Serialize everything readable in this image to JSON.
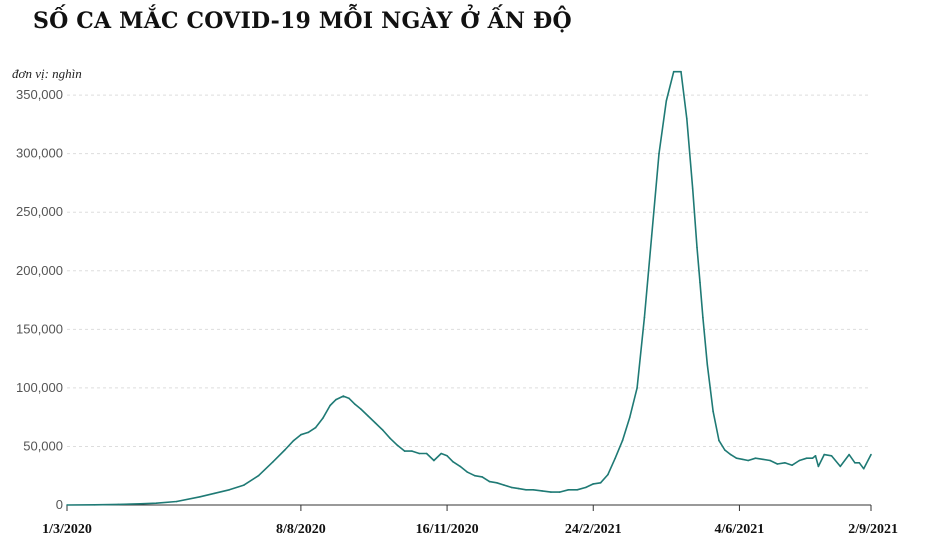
{
  "chart_data": {
    "type": "line",
    "title": "SỐ CA MẮC COVID-19 MỖI NGÀY Ở ẤN ĐỘ",
    "unit_label": "đơn vị: nghìn",
    "ylim": [
      0,
      380000
    ],
    "yticks": [
      0,
      50000,
      100000,
      150000,
      200000,
      250000,
      300000,
      350000
    ],
    "ytick_labels": [
      "0",
      "50,000",
      "100,000",
      "150,000",
      "200,000",
      "250,000",
      "300,000",
      "350,000"
    ],
    "xlim": [
      "2020-03-01",
      "2021-09-02"
    ],
    "xticks": [
      {
        "date": "2020-03-01",
        "label": "1/3/2020"
      },
      {
        "date": "2020-08-08",
        "label": "8/8/2020"
      },
      {
        "date": "2020-11-16",
        "label": "16/11/2020"
      },
      {
        "date": "2021-02-24",
        "label": "24/2/2021"
      },
      {
        "date": "2021-06-04",
        "label": "4/6/2021"
      },
      {
        "date": "2021-09-02",
        "label": "2/9/2021"
      }
    ],
    "grid": "horizontal dashed",
    "color": "#1f7a75",
    "series": [
      {
        "x": [
          "2020-03-01",
          "2020-03-20",
          "2020-04-05",
          "2020-04-20",
          "2020-05-01",
          "2020-05-15",
          "2020-05-31",
          "2020-06-10",
          "2020-06-20",
          "2020-06-30",
          "2020-07-10",
          "2020-07-20",
          "2020-07-28",
          "2020-08-03",
          "2020-08-08",
          "2020-08-13",
          "2020-08-18",
          "2020-08-23",
          "2020-08-28",
          "2020-09-01",
          "2020-09-06",
          "2020-09-10",
          "2020-09-14",
          "2020-09-18",
          "2020-09-23",
          "2020-09-28",
          "2020-10-03",
          "2020-10-08",
          "2020-10-13",
          "2020-10-18",
          "2020-10-23",
          "2020-10-28",
          "2020-11-02",
          "2020-11-07",
          "2020-11-12",
          "2020-11-16",
          "2020-11-20",
          "2020-11-25",
          "2020-11-30",
          "2020-12-05",
          "2020-12-10",
          "2020-12-15",
          "2020-12-20",
          "2020-12-25",
          "2020-12-30",
          "2021-01-04",
          "2021-01-09",
          "2021-01-14",
          "2021-01-20",
          "2021-01-26",
          "2021-02-01",
          "2021-02-07",
          "2021-02-13",
          "2021-02-19",
          "2021-02-24",
          "2021-03-01",
          "2021-03-06",
          "2021-03-11",
          "2021-03-16",
          "2021-03-21",
          "2021-03-26",
          "2021-03-31",
          "2021-04-05",
          "2021-04-10",
          "2021-04-15",
          "2021-04-20",
          "2021-04-25",
          "2021-04-29",
          "2021-05-03",
          "2021-05-06",
          "2021-05-08",
          "2021-05-10",
          "2021-05-13",
          "2021-05-17",
          "2021-05-21",
          "2021-05-25",
          "2021-05-29",
          "2021-06-02",
          "2021-06-06",
          "2021-06-10",
          "2021-06-15",
          "2021-06-20",
          "2021-06-25",
          "2021-06-30",
          "2021-07-05",
          "2021-07-10",
          "2021-07-15",
          "2021-07-20",
          "2021-07-24",
          "2021-07-26",
          "2021-07-28",
          "2021-08-01",
          "2021-08-06",
          "2021-08-12",
          "2021-08-18",
          "2021-08-22",
          "2021-08-25",
          "2021-08-28",
          "2021-09-02"
        ],
        "values": [
          0,
          200,
          500,
          1000,
          1500,
          3000,
          7000,
          10000,
          13000,
          17000,
          25000,
          37000,
          47000,
          55000,
          60000,
          62000,
          66000,
          74000,
          85000,
          90000,
          93000,
          91000,
          86000,
          82000,
          76000,
          70000,
          64000,
          57000,
          51000,
          46000,
          46000,
          44000,
          44000,
          38000,
          44000,
          42000,
          37000,
          33000,
          28000,
          25000,
          24000,
          20000,
          19000,
          17000,
          15000,
          14000,
          13000,
          13000,
          12000,
          11000,
          11000,
          13000,
          13000,
          15000,
          18000,
          19000,
          26000,
          40000,
          55000,
          75000,
          100000,
          160000,
          230000,
          300000,
          345000,
          370000,
          370000,
          330000,
          270000,
          220000,
          190000,
          160000,
          120000,
          80000,
          55000,
          47000,
          43000,
          40000,
          39000,
          38000,
          40000,
          39000,
          38000,
          35000,
          36000,
          34000,
          38000,
          40000,
          40000,
          42000,
          33000,
          43000,
          42000,
          33000,
          43000,
          36000,
          36000,
          31000,
          43000
        ]
      }
    ]
  }
}
